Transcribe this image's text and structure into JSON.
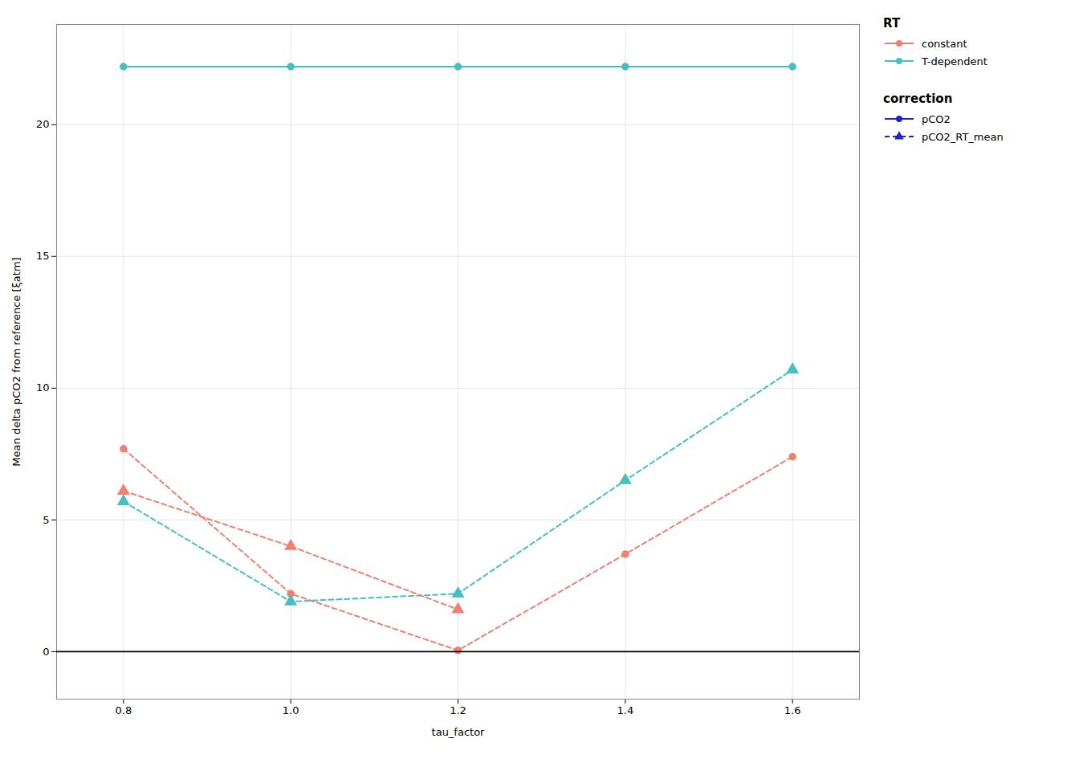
{
  "chart_data": {
    "type": "line",
    "x": [
      0.8,
      1.0,
      1.2,
      1.4,
      1.6
    ],
    "series": [
      {
        "color": "#45BFBF",
        "marker": "circle",
        "line_style": "solid",
        "values": [
          22.2,
          22.2,
          22.2,
          22.2,
          22.2
        ]
      },
      {
        "color": "#F08070",
        "marker": "circle",
        "line_style": "dashed",
        "values": [
          7.7,
          2.2,
          0.05,
          3.7,
          7.4
        ]
      },
      {
        "color": "#45BFBF",
        "marker": "triangle",
        "line_style": "dashed",
        "values": [
          5.7,
          1.9,
          2.2,
          6.5,
          10.7
        ]
      },
      {
        "color": "#F08070",
        "marker": "triangle",
        "line_style": "dashed",
        "values": [
          6.1,
          4.0,
          1.6,
          null,
          null
        ]
      }
    ],
    "xlabel": "tau_factor",
    "ylabel": "Mean delta pCO2 from reference [ξatm]",
    "xlim": [
      0.72,
      1.68
    ],
    "xticks": [
      0.8,
      {
        "value": 1.0,
        "label": "1.0"
      },
      1.2,
      1.4,
      1.6
    ],
    "ylim": [
      -1.8,
      23.8
    ],
    "yticks": [
      0,
      5,
      10,
      15,
      20
    ],
    "hlines": [
      0
    ],
    "grid": true,
    "legend": "right",
    "legends": [
      {
        "title": "RT",
        "entries": [
          {
            "label": "constant",
            "color": "#F08070",
            "marker": "circle",
            "line_style": "solid"
          },
          {
            "label": "T-dependent",
            "color": "#45BFBF",
            "marker": "circle",
            "line_style": "solid"
          }
        ]
      },
      {
        "title": "correction",
        "entries": [
          {
            "label": "pCO2",
            "color": "#2222CC",
            "marker": "circle",
            "line_style": "solid"
          },
          {
            "label": "pCO2_RT_mean",
            "color": "#2222CC",
            "marker": "triangle",
            "line_style": "dashed"
          }
        ]
      }
    ]
  }
}
